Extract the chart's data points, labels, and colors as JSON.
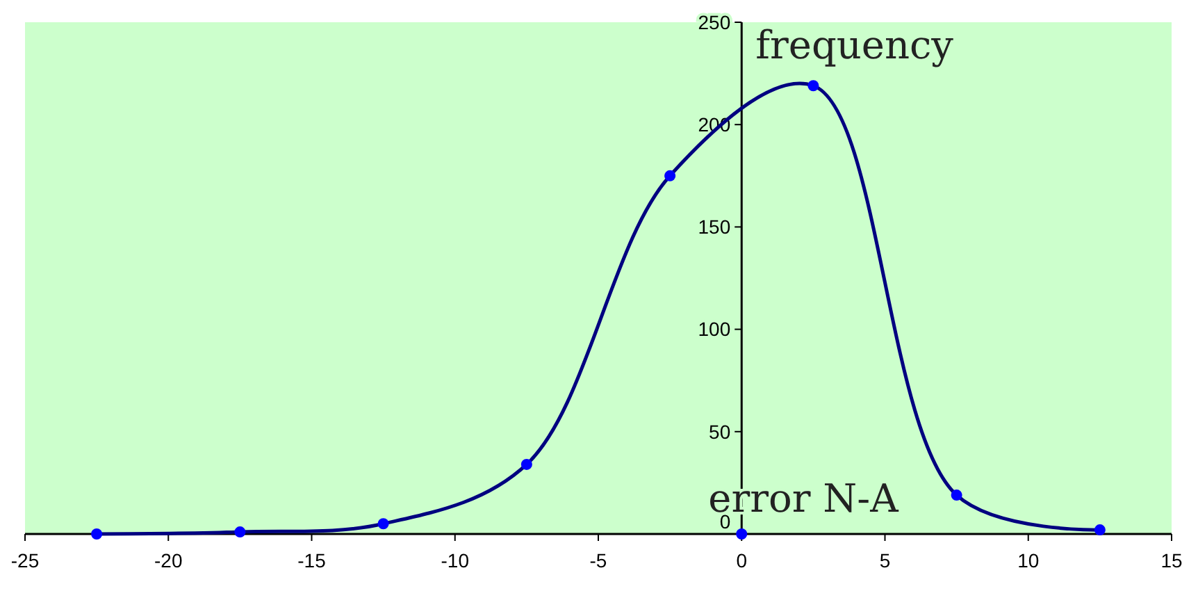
{
  "chart_data": {
    "type": "line",
    "xlabel": "error N-A",
    "ylabel": "frequency",
    "xlim": [
      -25,
      15
    ],
    "xticks": [
      -25,
      -20,
      -15,
      -10,
      -5,
      0,
      5,
      10,
      15
    ],
    "ylim": [
      0,
      250
    ],
    "yticks": [
      0,
      50,
      100,
      150,
      200,
      250
    ],
    "marker": "circle",
    "grid": false,
    "series": [
      {
        "color": "#000080",
        "x": [
          -22.5,
          -17.5,
          -12.5,
          -7.5,
          -2.5,
          2.5,
          7.5,
          12.5
        ],
        "values": [
          0,
          1,
          5,
          34,
          175,
          219,
          19,
          2
        ]
      },
      {
        "type": "scatter",
        "color": "#0000ff",
        "x": [
          0
        ],
        "values": [
          0
        ]
      }
    ]
  }
}
